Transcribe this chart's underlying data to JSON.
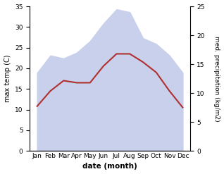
{
  "months": [
    "Jan",
    "Feb",
    "Mar",
    "Apr",
    "May",
    "Jun",
    "Jul",
    "Aug",
    "Sep",
    "Oct",
    "Nov",
    "Dec"
  ],
  "temperature": [
    10.8,
    14.5,
    17.0,
    16.5,
    16.5,
    20.5,
    23.5,
    23.5,
    21.5,
    19.0,
    14.5,
    10.5
  ],
  "precipitation": [
    13.5,
    16.5,
    16.0,
    17.0,
    19.0,
    22.0,
    24.5,
    24.0,
    19.5,
    18.5,
    16.5,
    13.5
  ],
  "temp_color": "#b03030",
  "precip_fill_color": "#c8d0eb",
  "temp_ylim": [
    0,
    35
  ],
  "precip_ylim": [
    0,
    25
  ],
  "temp_yticks": [
    0,
    5,
    10,
    15,
    20,
    25,
    30,
    35
  ],
  "precip_yticks": [
    0,
    5,
    10,
    15,
    20,
    25
  ],
  "xlabel": "date (month)",
  "ylabel_left": "max temp (C)",
  "ylabel_right": "med. precipitation (kg/m2)",
  "background_color": "#ffffff"
}
